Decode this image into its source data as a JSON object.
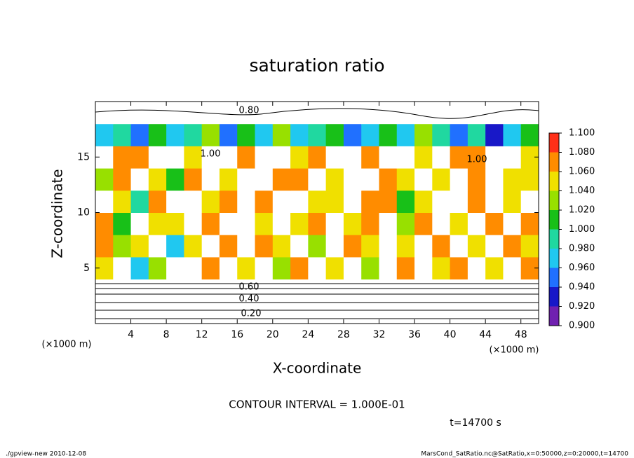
{
  "chart_data": {
    "type": "heatmap",
    "title": "saturation ratio",
    "x_label": "X-coordinate",
    "y_label": "Z-coordinate",
    "x_unit": "(×1000 m)",
    "y_unit": "(×1000 m)",
    "x": [
      1,
      3,
      5,
      7,
      9,
      11,
      13,
      15,
      17,
      19,
      21,
      23,
      25,
      27,
      29,
      31,
      33,
      35,
      37,
      39,
      41,
      43,
      45,
      47,
      49
    ],
    "y": [
      1,
      3,
      5,
      7,
      9,
      11,
      13,
      15,
      17,
      19
    ],
    "values": [
      [
        0.2,
        0.2,
        0.2,
        0.2,
        0.2,
        0.2,
        0.2,
        0.2,
        0.2,
        0.2,
        0.2,
        0.2,
        0.2,
        0.2,
        0.2,
        0.2,
        0.2,
        0.2,
        0.2,
        0.2,
        0.2,
        0.2,
        0.2,
        0.2,
        0.2
      ],
      [
        0.6,
        0.6,
        0.6,
        0.6,
        0.6,
        0.6,
        0.6,
        0.6,
        0.6,
        0.6,
        0.6,
        0.6,
        0.6,
        0.6,
        0.6,
        0.6,
        0.6,
        0.6,
        0.6,
        0.6,
        0.6,
        0.6,
        0.6,
        0.6,
        0.6
      ],
      [
        1.06,
        1.2,
        0.98,
        1.04,
        1.2,
        1.2,
        1.07,
        1.2,
        1.05,
        1.2,
        1.03,
        1.08,
        1.2,
        1.06,
        1.2,
        1.04,
        1.2,
        1.07,
        1.2,
        1.05,
        1.08,
        1.2,
        1.06,
        1.2,
        1.07
      ],
      [
        1.07,
        1.03,
        1.06,
        1.2,
        0.98,
        1.05,
        1.2,
        1.08,
        1.2,
        1.07,
        1.06,
        1.2,
        1.04,
        1.2,
        1.08,
        1.06,
        1.2,
        1.05,
        1.2,
        1.07,
        1.2,
        1.06,
        1.2,
        1.08,
        1.05
      ],
      [
        1.08,
        1.02,
        1.2,
        1.06,
        1.05,
        1.2,
        1.07,
        1.2,
        1.2,
        1.06,
        1.2,
        1.05,
        1.08,
        1.2,
        1.06,
        1.07,
        1.2,
        1.03,
        1.07,
        1.2,
        1.06,
        1.2,
        1.08,
        1.2,
        1.07
      ],
      [
        1.2,
        1.06,
        0.99,
        1.07,
        1.2,
        1.2,
        1.05,
        1.08,
        1.2,
        1.07,
        1.2,
        1.2,
        1.06,
        1.05,
        1.2,
        1.08,
        1.07,
        1.02,
        1.06,
        1.2,
        1.2,
        1.07,
        1.2,
        1.05,
        1.2
      ],
      [
        1.04,
        1.07,
        1.2,
        1.06,
        1.02,
        1.07,
        1.2,
        1.06,
        1.2,
        1.2,
        1.07,
        1.08,
        1.2,
        1.06,
        1.2,
        1.2,
        1.07,
        1.05,
        1.2,
        1.06,
        1.2,
        1.08,
        1.2,
        1.06,
        1.05
      ],
      [
        1.2,
        1.07,
        1.08,
        1.2,
        1.2,
        1.06,
        1.2,
        1.2,
        1.07,
        1.2,
        1.2,
        1.06,
        1.08,
        1.2,
        1.2,
        1.07,
        1.2,
        1.2,
        1.06,
        1.2,
        1.08,
        1.07,
        1.2,
        1.2,
        1.06
      ],
      [
        0.97,
        1.0,
        0.95,
        1.02,
        0.97,
        0.99,
        1.03,
        0.96,
        1.01,
        0.98,
        1.04,
        0.97,
        0.99,
        1.02,
        0.95,
        0.98,
        1.01,
        0.97,
        1.03,
        0.99,
        0.96,
        1.0,
        0.94,
        0.98,
        1.02
      ],
      [
        0.8,
        0.8,
        0.8,
        0.8,
        0.8,
        0.8,
        0.8,
        0.8,
        0.8,
        0.8,
        0.8,
        0.8,
        0.8,
        0.8,
        0.8,
        0.8,
        0.8,
        0.8,
        0.8,
        0.8,
        0.8,
        0.8,
        0.8,
        0.8,
        0.8
      ]
    ],
    "xlim": [
      0,
      50
    ],
    "ylim": [
      0,
      20
    ],
    "xticks": [
      4,
      8,
      12,
      16,
      20,
      24,
      28,
      32,
      36,
      40,
      44,
      48
    ],
    "yticks": [
      5,
      10,
      15
    ],
    "colorbar": {
      "levels": [
        {
          "value": 0.9,
          "label": "0.900"
        },
        {
          "value": 0.92,
          "label": "0.920"
        },
        {
          "value": 0.94,
          "label": "0.940"
        },
        {
          "value": 0.96,
          "label": "0.960"
        },
        {
          "value": 0.98,
          "label": "0.980"
        },
        {
          "value": 1.0,
          "label": "1.000"
        },
        {
          "value": 1.02,
          "label": "1.020"
        },
        {
          "value": 1.04,
          "label": "1.040"
        },
        {
          "value": 1.06,
          "label": "1.060"
        },
        {
          "value": 1.08,
          "label": "1.080"
        },
        {
          "value": 1.1,
          "label": "1.100"
        }
      ],
      "colors": [
        "#7020b0",
        "#1818c8",
        "#2070ff",
        "#20c8f0",
        "#20d8a0",
        "#18c018",
        "#98e000",
        "#f0e000",
        "#ff8c00",
        "#ff3018"
      ]
    },
    "contour_labels": [
      "0.80",
      "1.00",
      "1.00",
      "0.60",
      "0.40",
      "0.20"
    ],
    "annotations": [
      "CONTOUR INTERVAL = 1.000E-01",
      "t=14700 s"
    ],
    "footer_left": "./gpview-new  2010-12-08",
    "footer_right": "MarsCond_SatRatio.nc@SatRatio,x=0:50000,z=0:20000,t=14700"
  }
}
